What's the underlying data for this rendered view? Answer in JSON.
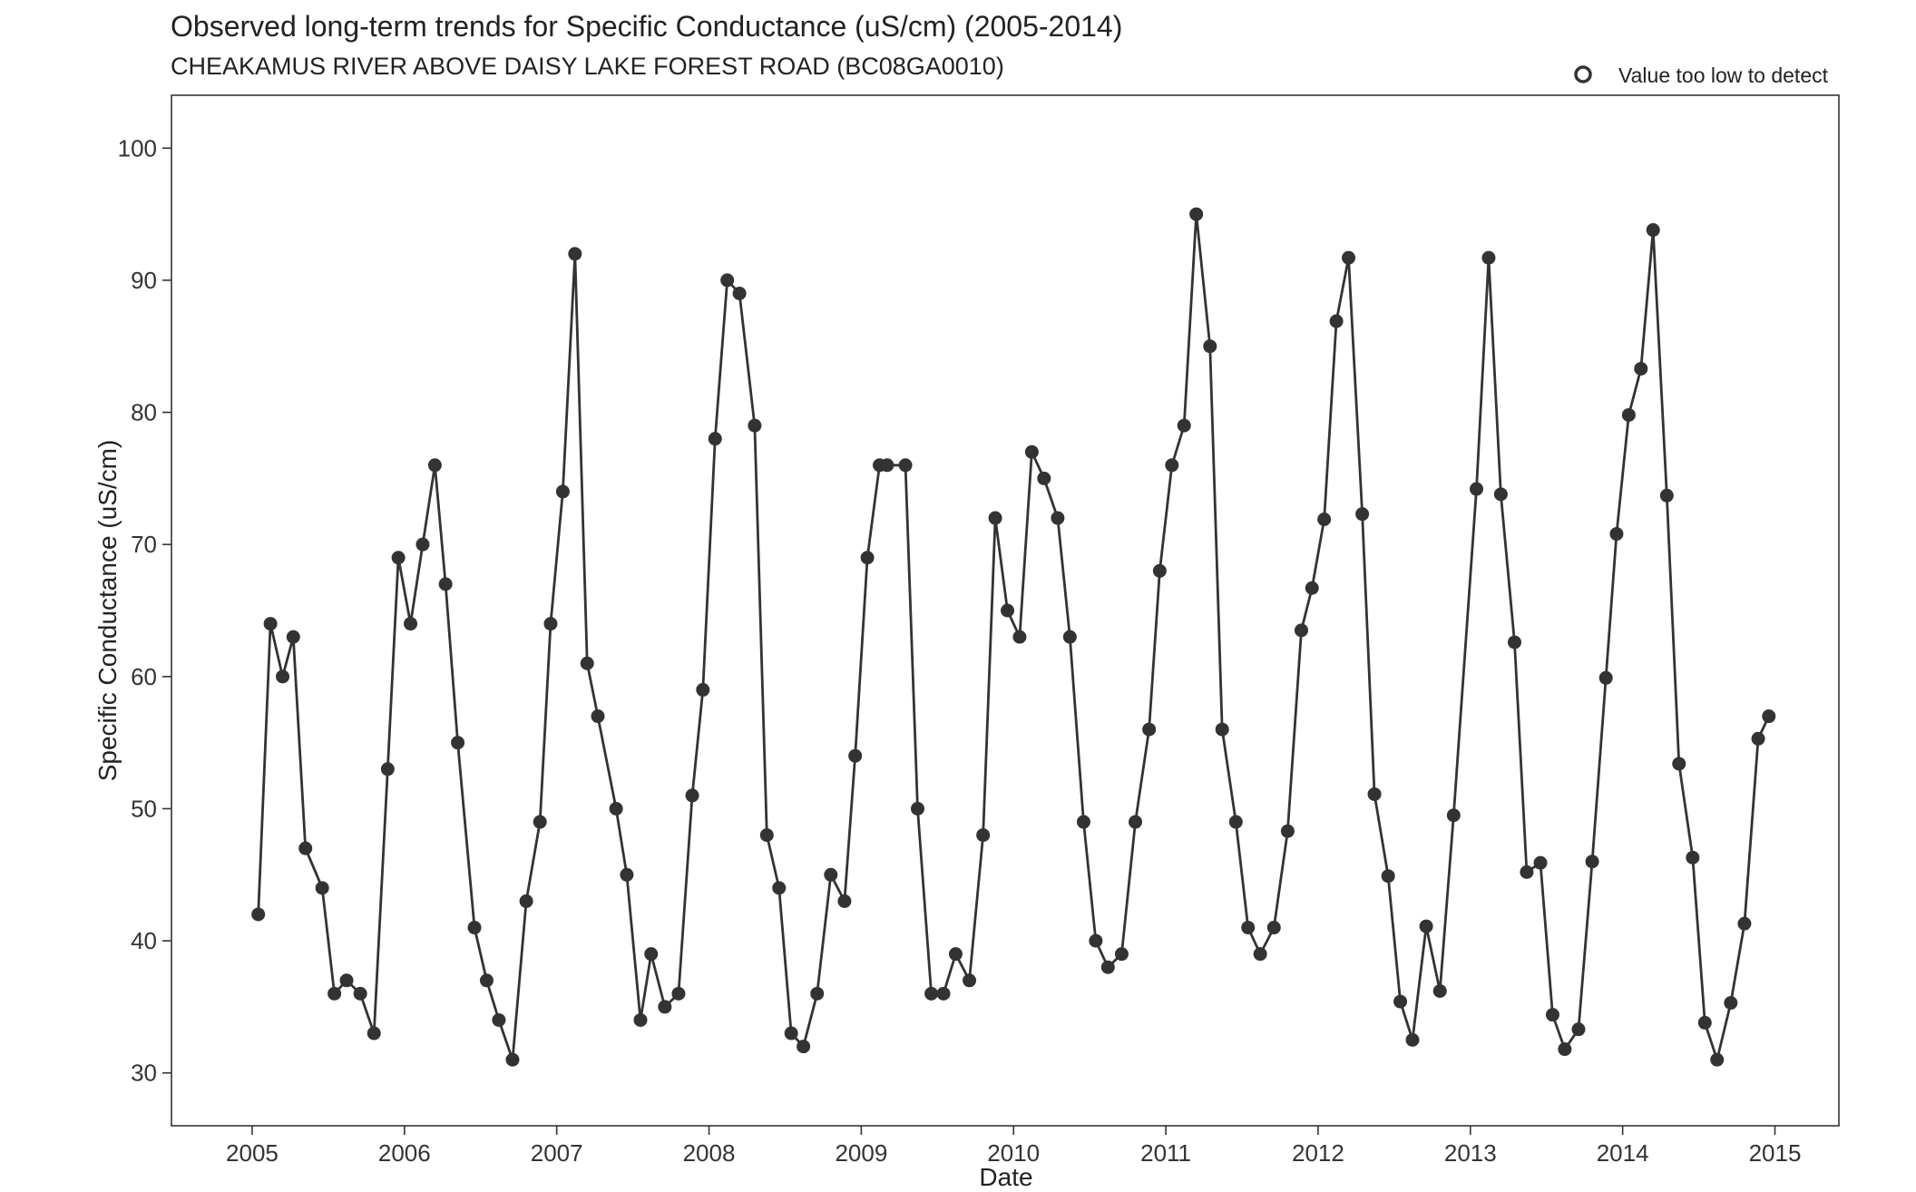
{
  "chart_data": {
    "type": "line",
    "title": "Observed long-term trends for Specific Conductance (uS/cm) (2005-2014)",
    "subtitle": "CHEAKAMUS RIVER ABOVE DAISY LAKE FOREST ROAD (BC08GA0010)",
    "xlabel": "Date",
    "ylabel": "Specific Conductance (uS/cm)",
    "legend": {
      "label": "Value too low to detect",
      "placement": "top-right"
    },
    "xlim": [
      2004.47,
      2015.42
    ],
    "ylim": [
      26,
      104
    ],
    "x_ticks": [
      2005,
      2006,
      2007,
      2008,
      2009,
      2010,
      2011,
      2012,
      2013,
      2014,
      2015
    ],
    "x_tick_labels": [
      "2005",
      "2006",
      "2007",
      "2008",
      "2009",
      "2010",
      "2011",
      "2012",
      "2013",
      "2014",
      "2015"
    ],
    "y_ticks": [
      30,
      40,
      50,
      60,
      70,
      80,
      90,
      100
    ],
    "y_tick_labels": [
      "30",
      "40",
      "50",
      "60",
      "70",
      "80",
      "90",
      "100"
    ],
    "grid": false,
    "series": [
      {
        "color": "#333333",
        "x": [
          2005.04,
          2005.12,
          2005.2,
          2005.27,
          2005.35,
          2005.46,
          2005.54,
          2005.62,
          2005.71,
          2005.8,
          2005.89,
          2005.96,
          2006.04,
          2006.12,
          2006.2,
          2006.27,
          2006.35,
          2006.46,
          2006.54,
          2006.62,
          2006.71,
          2006.8,
          2006.89,
          2006.96,
          2007.04,
          2007.12,
          2007.2,
          2007.27,
          2007.39,
          2007.46,
          2007.55,
          2007.62,
          2007.71,
          2007.8,
          2007.89,
          2007.96,
          2008.04,
          2008.12,
          2008.2,
          2008.3,
          2008.38,
          2008.46,
          2008.54,
          2008.62,
          2008.71,
          2008.8,
          2008.89,
          2008.96,
          2009.04,
          2009.12,
          2009.17,
          2009.29,
          2009.37,
          2009.46,
          2009.54,
          2009.62,
          2009.71,
          2009.8,
          2009.88,
          2009.96,
          2010.04,
          2010.12,
          2010.2,
          2010.29,
          2010.37,
          2010.46,
          2010.54,
          2010.62,
          2010.71,
          2010.8,
          2010.89,
          2010.96,
          2011.04,
          2011.12,
          2011.2,
          2011.29,
          2011.37,
          2011.46,
          2011.54,
          2011.62,
          2011.71,
          2011.8,
          2011.89,
          2011.96,
          2012.04,
          2012.12,
          2012.2,
          2012.29,
          2012.37,
          2012.46,
          2012.54,
          2012.62,
          2012.71,
          2012.8,
          2012.89,
          2013.04,
          2013.12,
          2013.2,
          2013.29,
          2013.37,
          2013.46,
          2013.54,
          2013.62,
          2013.71,
          2013.8,
          2013.89,
          2013.96,
          2014.04,
          2014.12,
          2014.2,
          2014.29,
          2014.37,
          2014.46,
          2014.54,
          2014.62,
          2014.71,
          2014.8,
          2014.89,
          2014.96
        ],
        "y": [
          42,
          64,
          60,
          63,
          47,
          44,
          36,
          37,
          36,
          33,
          53,
          69,
          64,
          70,
          76,
          67,
          55,
          41,
          37,
          34,
          31,
          43,
          49,
          64,
          74,
          92,
          61,
          57,
          50,
          45,
          34,
          39,
          35,
          36,
          51,
          59,
          78,
          90,
          89,
          79,
          48,
          44,
          33,
          32,
          36,
          45,
          43,
          54,
          69,
          76,
          76,
          76,
          50,
          36,
          36,
          39,
          37,
          48,
          72,
          65,
          63,
          77,
          75,
          72,
          63,
          49,
          40,
          38,
          39,
          49,
          56,
          68,
          76,
          79,
          95,
          85,
          56,
          49,
          41,
          39,
          41,
          48.3,
          63.5,
          66.7,
          71.9,
          86.9,
          91.7,
          72.3,
          51.1,
          44.9,
          35.4,
          32.5,
          41.1,
          36.2,
          49.5,
          74.2,
          91.7,
          73.8,
          62.6,
          45.2,
          45.9,
          34.4,
          31.8,
          33.3,
          46,
          59.9,
          70.8,
          79.8,
          83.3,
          93.8,
          73.7,
          53.4,
          46.3,
          33.8,
          31,
          35.3,
          41.3,
          55.3,
          57
        ]
      }
    ]
  }
}
